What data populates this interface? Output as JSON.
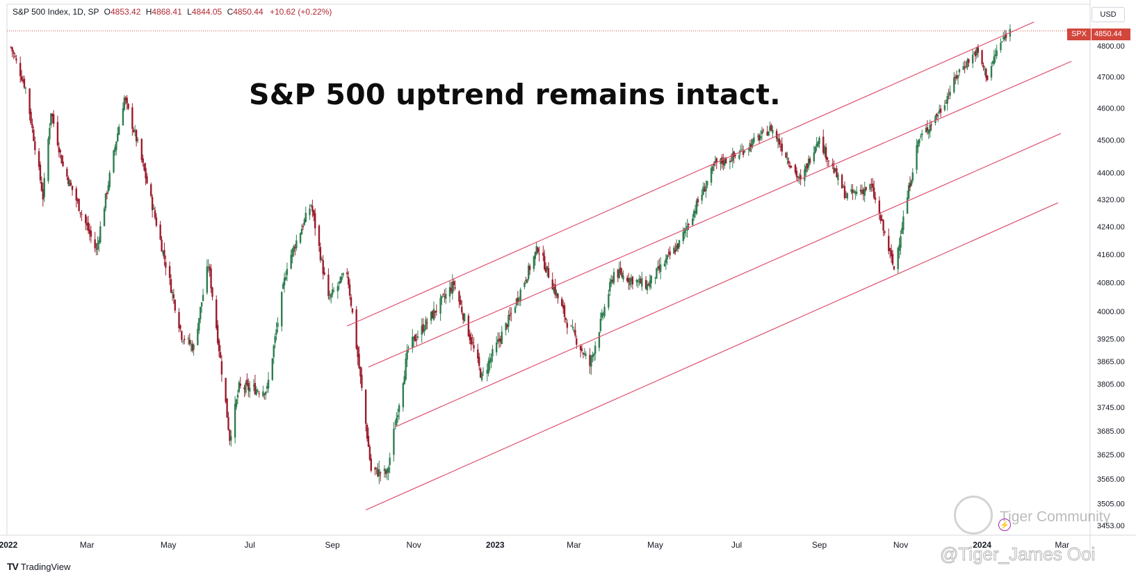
{
  "legend": {
    "symbol": "S&P 500 Index, 1D, SP",
    "open_label": "O",
    "open": "4853.42",
    "high_label": "H",
    "high": "4868.41",
    "low_label": "L",
    "low": "4844.05",
    "close_label": "C",
    "close": "4850.44",
    "change": "+10.62 (+0.22%)"
  },
  "headline": "S&P 500 uptrend remains intact.",
  "currency": "USD",
  "price_tag": {
    "symbol": "SPX",
    "value": "4850.44"
  },
  "branding": {
    "tradingview_mark": "TV",
    "tradingview": "TradingView"
  },
  "watermark": {
    "community": "Tiger Community",
    "handle": "@Tiger_James Ooi",
    "bolt_icon": "⚡"
  },
  "colors": {
    "up": "#2e7d4f",
    "down": "#9b1c2c",
    "channel": "#e0506e",
    "price_line": "#d2463c",
    "axis_text": "#131722"
  },
  "chart_data": {
    "type": "candlestick",
    "title": "S&P 500 uptrend remains intact.",
    "series_name": "S&P 500 Index, 1D, SP",
    "y_scale": "log",
    "ylim": [
      3430,
      4940
    ],
    "xlim": [
      "2021-12-31",
      "2024-03-22"
    ],
    "y_ticks": [
      "4800.00",
      "4700.00",
      "4600.00",
      "4500.00",
      "4400.00",
      "4320.00",
      "4240.00",
      "4160.00",
      "4080.00",
      "4000.00",
      "3925.00",
      "3865.00",
      "3805.00",
      "3745.00",
      "3685.00",
      "3625.00",
      "3565.00",
      "3505.00",
      "3453.00"
    ],
    "x_ticks": [
      {
        "date": "2022-01-01",
        "label": "2022"
      },
      {
        "date": "2022-03-01",
        "label": "Mar"
      },
      {
        "date": "2022-05-01",
        "label": "May"
      },
      {
        "date": "2022-07-01",
        "label": "Jul"
      },
      {
        "date": "2022-09-01",
        "label": "Sep"
      },
      {
        "date": "2022-11-01",
        "label": "Nov"
      },
      {
        "date": "2023-01-01",
        "label": "2023"
      },
      {
        "date": "2023-03-01",
        "label": "Mar"
      },
      {
        "date": "2023-05-01",
        "label": "May"
      },
      {
        "date": "2023-07-01",
        "label": "Jul"
      },
      {
        "date": "2023-09-01",
        "label": "Sep"
      },
      {
        "date": "2023-11-01",
        "label": "Nov"
      },
      {
        "date": "2024-01-01",
        "label": "2024"
      },
      {
        "date": "2024-03-01",
        "label": "Mar"
      }
    ],
    "last_price": 4850.44,
    "closes": [
      [
        "2022-01-03",
        4796
      ],
      [
        "2022-01-14",
        4663
      ],
      [
        "2022-01-27",
        4327
      ],
      [
        "2022-02-02",
        4590
      ],
      [
        "2022-02-11",
        4419
      ],
      [
        "2022-02-24",
        4288
      ],
      [
        "2022-03-08",
        4170
      ],
      [
        "2022-03-29",
        4632
      ],
      [
        "2022-04-08",
        4488
      ],
      [
        "2022-04-29",
        4132
      ],
      [
        "2022-05-11",
        3935
      ],
      [
        "2022-05-20",
        3901
      ],
      [
        "2022-05-31",
        4132
      ],
      [
        "2022-06-16",
        3667
      ],
      [
        "2022-06-23",
        3796
      ],
      [
        "2022-07-14",
        3790
      ],
      [
        "2022-07-29",
        4130
      ],
      [
        "2022-08-16",
        4305
      ],
      [
        "2022-08-29",
        4031
      ],
      [
        "2022-09-12",
        4110
      ],
      [
        "2022-09-30",
        3586
      ],
      [
        "2022-10-12",
        3578
      ],
      [
        "2022-10-28",
        3901
      ],
      [
        "2022-11-15",
        3992
      ],
      [
        "2022-12-01",
        4076
      ],
      [
        "2022-12-22",
        3823
      ],
      [
        "2023-01-12",
        3983
      ],
      [
        "2023-02-02",
        4179
      ],
      [
        "2023-02-24",
        3970
      ],
      [
        "2023-03-13",
        3855
      ],
      [
        "2023-03-31",
        4109
      ],
      [
        "2023-04-25",
        4072
      ],
      [
        "2023-05-19",
        4191
      ],
      [
        "2023-06-15",
        4425
      ],
      [
        "2023-06-30",
        4450
      ],
      [
        "2023-07-27",
        4537
      ],
      [
        "2023-08-18",
        4370
      ],
      [
        "2023-08-31",
        4508
      ],
      [
        "2023-09-21",
        4330
      ],
      [
        "2023-10-10",
        4358
      ],
      [
        "2023-10-27",
        4117
      ],
      [
        "2023-11-14",
        4496
      ],
      [
        "2023-12-01",
        4594
      ],
      [
        "2023-12-15",
        4719
      ],
      [
        "2023-12-28",
        4783
      ],
      [
        "2024-01-05",
        4697
      ],
      [
        "2024-01-12",
        4784
      ],
      [
        "2024-01-19",
        4839
      ],
      [
        "2024-01-22",
        4850
      ]
    ],
    "channel_lines": [
      {
        "start": [
          "2022-09-12",
          3960
        ],
        "end": [
          "2024-02-09",
          4880
        ]
      },
      {
        "start": [
          "2022-09-28",
          3850
        ],
        "end": [
          "2024-03-08",
          4750
        ]
      },
      {
        "start": [
          "2022-10-18",
          3695
        ],
        "end": [
          "2024-02-29",
          4520
        ]
      },
      {
        "start": [
          "2022-09-26",
          3490
        ],
        "end": [
          "2024-02-27",
          4310
        ]
      }
    ]
  }
}
